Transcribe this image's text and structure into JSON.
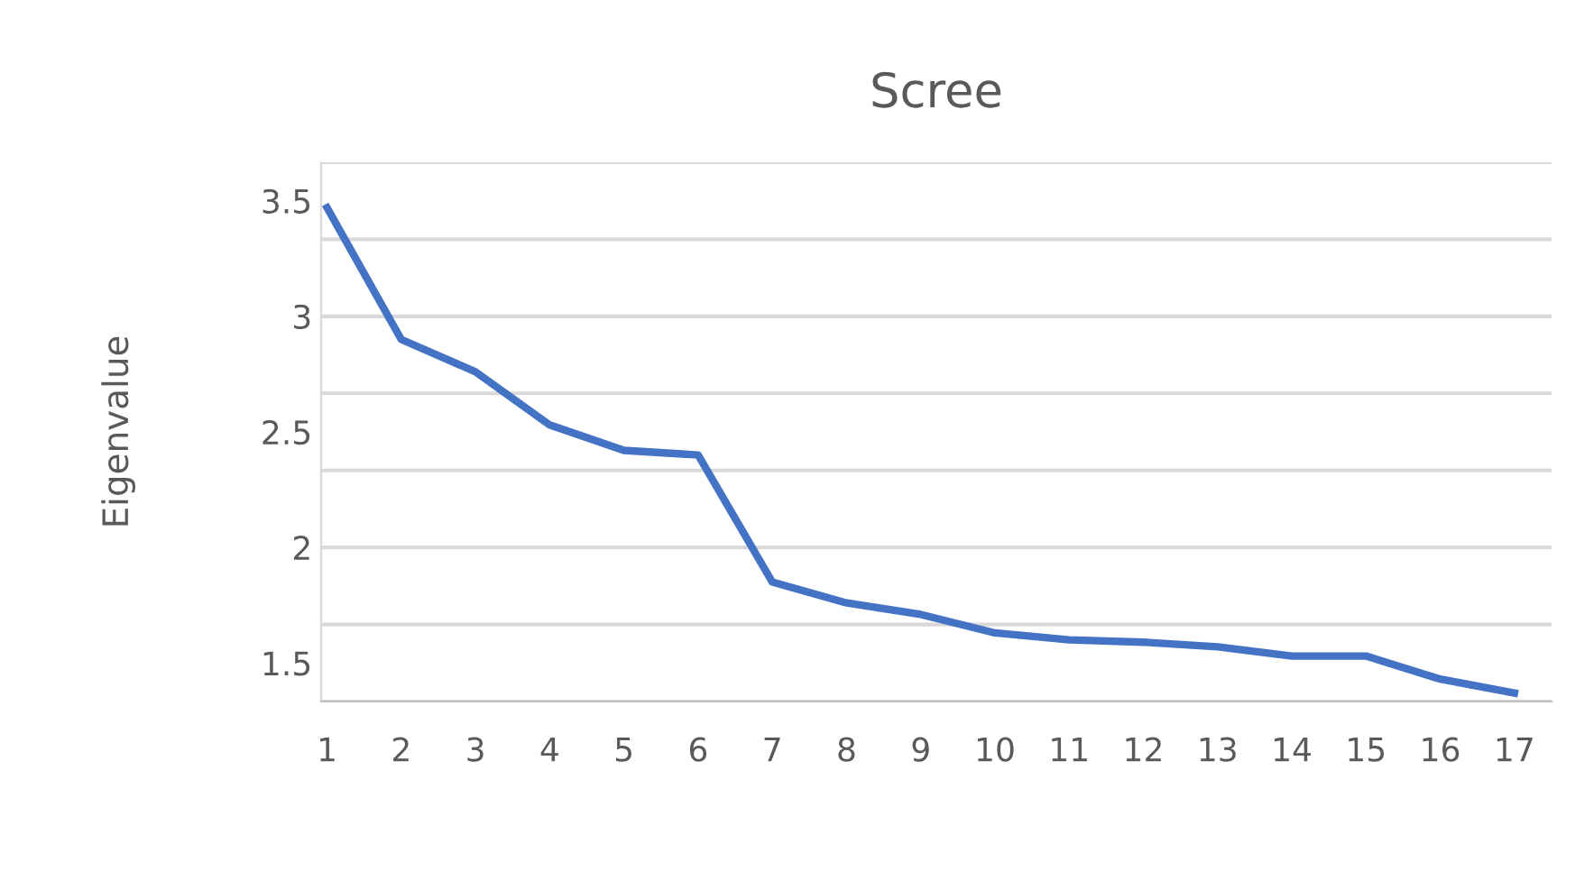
{
  "chart_data": {
    "type": "line",
    "title": "Scree",
    "ylabel": "Eigenvalue",
    "categories": [
      "1",
      "2",
      "3",
      "4",
      "5",
      "6",
      "7",
      "8",
      "9",
      "10",
      "11",
      "12",
      "13",
      "14",
      "15",
      "16",
      "17"
    ],
    "series": [
      {
        "color": "#4472c4",
        "values": [
          3.47,
          2.9,
          2.76,
          2.53,
          2.42,
          2.4,
          1.85,
          1.76,
          1.71,
          1.63,
          1.6,
          1.59,
          1.57,
          1.53,
          1.53,
          1.43,
          1.37
        ]
      }
    ],
    "ylim": [
      1.3333,
      3.6667
    ],
    "yticks": [
      {
        "value": 3.6667,
        "label": null
      },
      3.5,
      {
        "value": 3.3333,
        "label": null
      },
      3,
      {
        "value": 2.6667,
        "label": null
      },
      2.5,
      {
        "value": 2.3333,
        "label": null
      },
      2,
      {
        "value": 1.6667,
        "label": null
      },
      1.5,
      {
        "value": 1.3333,
        "label": null
      }
    ],
    "grid": "y",
    "marker": "none",
    "line_style": "solid",
    "legend": false
  }
}
